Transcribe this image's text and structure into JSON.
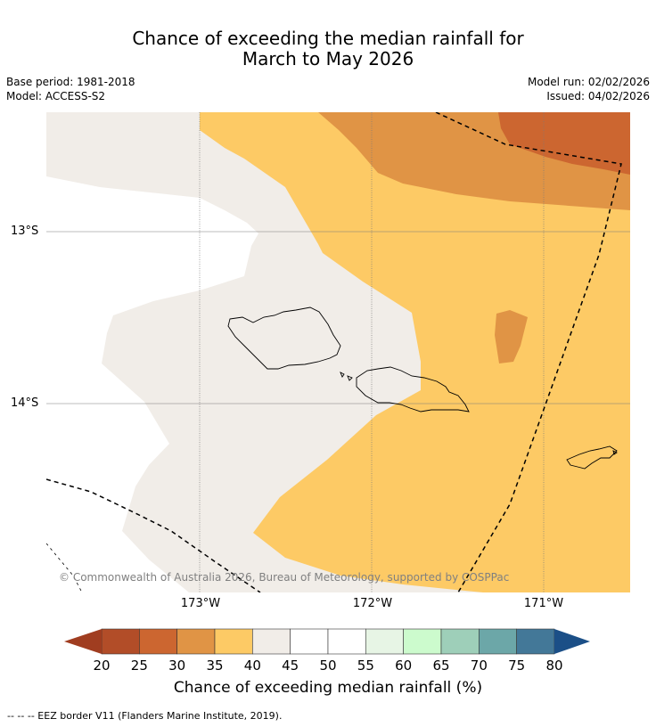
{
  "title": {
    "line1": "Chance of exceeding the median rainfall for",
    "line2": "March to May 2026"
  },
  "info": {
    "base_period": "Base period: 1981-2018",
    "model": "Model: ACCESS-S2",
    "model_run": "Model run: 02/02/2026",
    "issued": "Issued: 04/02/2026"
  },
  "map": {
    "lat_labels": [
      "13°S",
      "14°S"
    ],
    "lon_labels": [
      "173°W",
      "172°W",
      "171°W"
    ],
    "colors": {
      "c35_40": "#fdca65",
      "c30_35": "#e09445",
      "c25_30": "#cc6630",
      "c40_45": "#f1ede8",
      "land_outline": "#000000",
      "gridline": "#7a7a7a"
    },
    "copyright": "© Commonwealth of Australia 2026, Bureau of Meteorology, supported by COSPPac"
  },
  "colorbar": {
    "ticks": [
      "20",
      "25",
      "30",
      "35",
      "40",
      "45",
      "50",
      "55",
      "60",
      "65",
      "70",
      "75",
      "80"
    ],
    "colors": [
      "#a03d20",
      "#b24d28",
      "#cc6630",
      "#e09445",
      "#fdca65",
      "#f1ede8",
      "#ffffff",
      "#ffffff",
      "#e7f5e5",
      "#ccfbcd",
      "#9ecfb9",
      "#6ca7a8",
      "#437898",
      "#1b4f87"
    ],
    "label": "Chance of exceeding median rainfall (%)"
  },
  "footer": "--  --  -- EEZ border V11 (Flanders Marine Institute, 2019)."
}
